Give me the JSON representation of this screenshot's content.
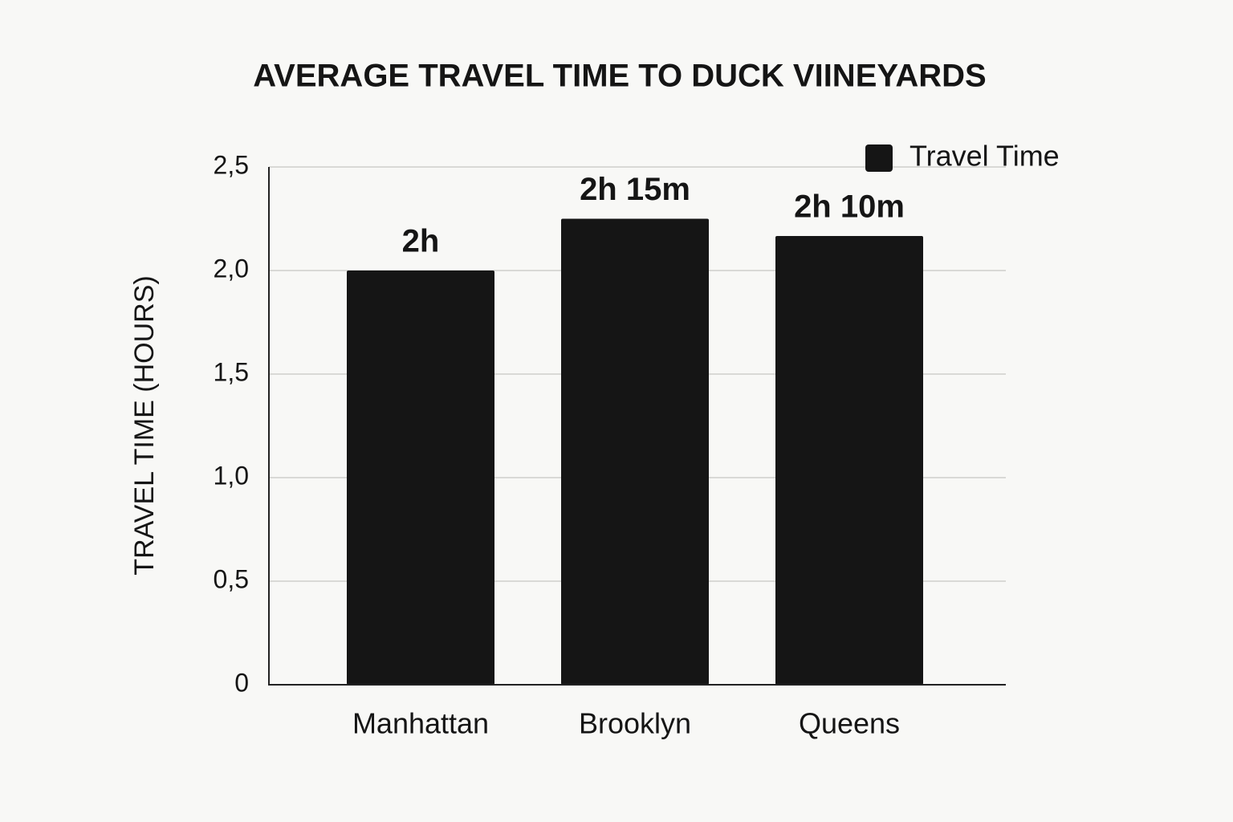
{
  "chart_data": {
    "type": "bar",
    "title": "AVERAGE TRAVEL TIME TO DUCK VIINEYARDS",
    "y_label": "TRAVEL TIME (HOURS)",
    "categories": [
      "Manhattan",
      "Brooklyn",
      "Queens"
    ],
    "series": [
      {
        "name": "Travel Time",
        "color": "#151515",
        "values": [
          2,
          2.25,
          2.1667
        ],
        "value_labels": [
          "2h",
          "2h 15m",
          "2h 10m"
        ]
      }
    ],
    "ylim": [
      0,
      2.5
    ],
    "yticks": [
      0,
      {
        "value": 0.5,
        "label": "0,5"
      },
      {
        "value": 1,
        "label": "1,0"
      },
      {
        "value": 1.5,
        "label": "1,5"
      },
      {
        "value": 2,
        "label": "2,0"
      },
      {
        "value": 2.5,
        "label": "2,5"
      }
    ],
    "grid": true,
    "legend": "top-right"
  }
}
